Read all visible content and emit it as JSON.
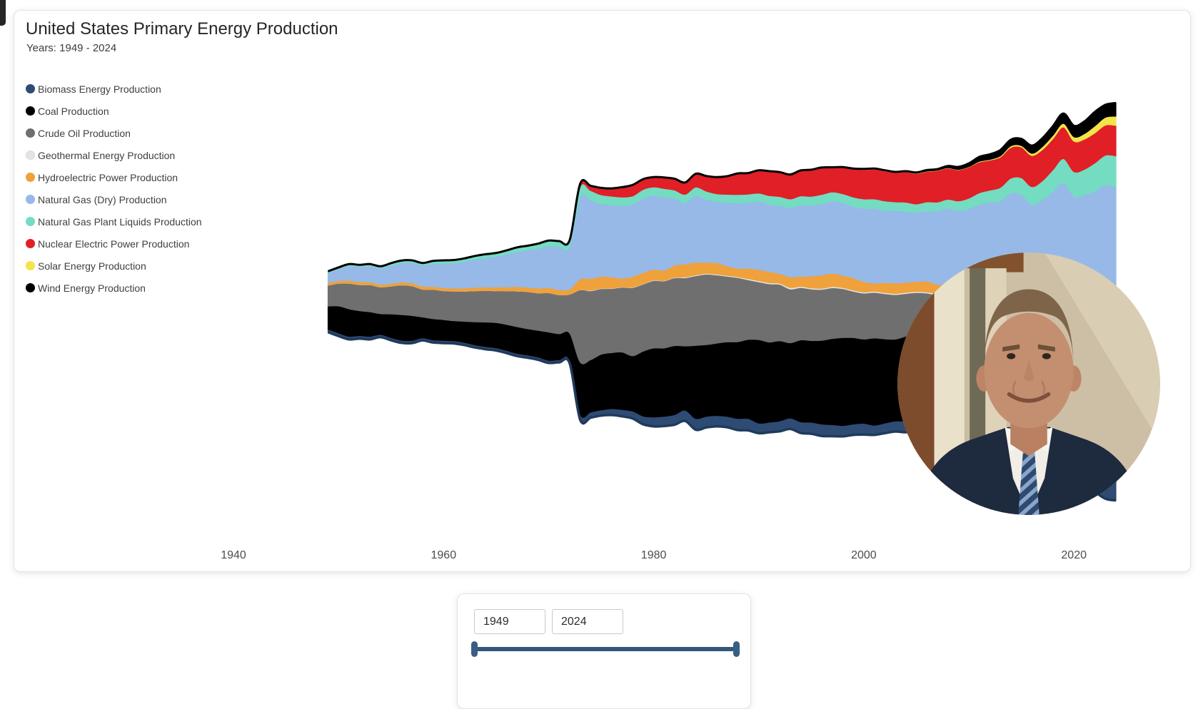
{
  "header": {
    "title": "United States Primary Energy Production",
    "subtitle": "Years: 1949 - 2024"
  },
  "legend": {
    "items": [
      {
        "label": "Biomass Energy Production",
        "color": "#2E4B73"
      },
      {
        "label": "Coal Production",
        "color": "#000000"
      },
      {
        "label": "Crude Oil Production",
        "color": "#6F6F6F"
      },
      {
        "label": "Geothermal Energy Production",
        "color": "#E4E4E4"
      },
      {
        "label": "Hydroelectric Power Production",
        "color": "#EFA13C"
      },
      {
        "label": "Natural Gas (Dry) Production",
        "color": "#96B9E7"
      },
      {
        "label": "Natural Gas Plant Liquids Production",
        "color": "#74DCC1"
      },
      {
        "label": "Nuclear Electric Power Production",
        "color": "#E01F26"
      },
      {
        "label": "Solar Energy Production",
        "color": "#F4E34A"
      },
      {
        "label": "Wind Energy Production",
        "color": "#000000"
      }
    ]
  },
  "chart_data": {
    "type": "area",
    "variant": "streamgraph-silhouette",
    "title": "United States Primary Energy Production",
    "xlabel": "",
    "ylabel": "",
    "grid": false,
    "legend_position": "top-left",
    "x_ticks": [
      1940,
      1960,
      1980,
      2000,
      2020
    ],
    "x_range": [
      1935,
      2030
    ],
    "top_outline_color": "#000000",
    "bottom_outline_color": "#1F3A5C",
    "x": [
      1949,
      1950,
      1951,
      1952,
      1953,
      1954,
      1955,
      1956,
      1957,
      1958,
      1959,
      1960,
      1961,
      1962,
      1963,
      1964,
      1965,
      1966,
      1967,
      1968,
      1969,
      1970,
      1971,
      1972,
      1973,
      1974,
      1975,
      1976,
      1977,
      1978,
      1979,
      1980,
      1981,
      1982,
      1983,
      1984,
      1985,
      1986,
      1987,
      1988,
      1989,
      1990,
      1991,
      1992,
      1993,
      1994,
      1995,
      1996,
      1997,
      1998,
      1999,
      2000,
      2001,
      2002,
      2003,
      2004,
      2005,
      2006,
      2007,
      2008,
      2009,
      2010,
      2011,
      2012,
      2013,
      2014,
      2015,
      2016,
      2017,
      2018,
      2019,
      2020,
      2021,
      2022,
      2023,
      2024
    ],
    "series": [
      {
        "name": "Biomass Energy Production",
        "color": "#2E4B73",
        "values": [
          0.8,
          0.8,
          0.8,
          0.8,
          0.8,
          0.7,
          0.7,
          0.7,
          0.7,
          0.7,
          0.7,
          0.7,
          0.7,
          0.7,
          0.7,
          0.7,
          0.7,
          0.7,
          0.7,
          0.7,
          0.7,
          0.7,
          0.7,
          0.8,
          1.5,
          1.5,
          1.5,
          1.7,
          1.8,
          2.0,
          2.2,
          2.5,
          2.6,
          2.7,
          2.9,
          3.0,
          3.0,
          2.9,
          2.9,
          3.1,
          3.2,
          2.7,
          2.7,
          2.8,
          2.9,
          3.0,
          3.1,
          3.2,
          3.1,
          2.9,
          2.9,
          3.0,
          2.6,
          2.7,
          2.8,
          3.0,
          3.1,
          3.2,
          3.4,
          3.8,
          3.9,
          4.3,
          4.4,
          4.5,
          4.6,
          4.8,
          4.7,
          4.7,
          4.9,
          5.0,
          4.9,
          4.5,
          4.8,
          5.0,
          5.0,
          5.1
        ]
      },
      {
        "name": "Coal Production",
        "color": "#000000",
        "values": [
          6.2,
          7.3,
          7.4,
          6.7,
          6.6,
          5.6,
          6.4,
          6.9,
          6.7,
          5.6,
          5.7,
          5.6,
          5.4,
          5.7,
          6.2,
          6.6,
          6.8,
          7.0,
          7.2,
          7.1,
          7.2,
          7.6,
          7.0,
          7.3,
          14.0,
          14.1,
          15.0,
          15.1,
          15.5,
          14.9,
          17.5,
          18.6,
          18.4,
          18.6,
          17.3,
          19.7,
          19.3,
          19.5,
          20.1,
          20.7,
          21.3,
          22.5,
          21.6,
          21.6,
          20.3,
          22.1,
          22.0,
          22.6,
          23.2,
          23.7,
          23.3,
          22.7,
          23.5,
          22.7,
          22.1,
          22.9,
          23.2,
          23.8,
          23.5,
          23.9,
          21.6,
          22.0,
          22.2,
          20.7,
          20.0,
          20.3,
          18.0,
          14.7,
          15.7,
          15.4,
          14.3,
          10.7,
          11.6,
          12.0,
          11.8,
          10.3
        ]
      },
      {
        "name": "Crude Oil Production",
        "color": "#6F6F6F",
        "values": [
          5.6,
          6.1,
          6.9,
          7.0,
          7.3,
          7.2,
          7.5,
          8.0,
          8.0,
          7.5,
          7.9,
          7.8,
          8.0,
          8.1,
          8.4,
          8.5,
          8.6,
          9.1,
          9.6,
          10.0,
          10.1,
          10.6,
          10.5,
          10.5,
          19.5,
          18.6,
          17.7,
          17.3,
          17.5,
          18.4,
          18.1,
          18.2,
          18.1,
          18.3,
          18.4,
          18.8,
          19.0,
          18.4,
          17.7,
          17.3,
          16.1,
          15.6,
          15.7,
          15.2,
          14.5,
          14.1,
          13.9,
          13.7,
          13.7,
          13.2,
          12.5,
          12.4,
          12.3,
          12.2,
          12.0,
          11.5,
          11.0,
          10.8,
          10.7,
          10.5,
          11.3,
          11.6,
          12.0,
          13.8,
          15.8,
          18.7,
          19.7,
          18.7,
          19.6,
          23.2,
          25.9,
          23.9,
          23.7,
          25.2,
          27.3,
          28.0
        ]
      },
      {
        "name": "Geothermal Energy Production",
        "color": "#E4E4E4",
        "values": [
          0,
          0,
          0,
          0,
          0,
          0,
          0,
          0,
          0,
          0,
          0,
          0,
          0,
          0,
          0,
          0,
          0,
          0,
          0,
          0,
          0,
          0,
          0,
          0,
          0,
          0.1,
          0.1,
          0.1,
          0.1,
          0.1,
          0.1,
          0.1,
          0.1,
          0.1,
          0.2,
          0.2,
          0.2,
          0.2,
          0.2,
          0.2,
          0.3,
          0.3,
          0.3,
          0.3,
          0.4,
          0.3,
          0.3,
          0.3,
          0.3,
          0.3,
          0.3,
          0.3,
          0.3,
          0.3,
          0.3,
          0.3,
          0.3,
          0.3,
          0.3,
          0.3,
          0.3,
          0.2,
          0.2,
          0.2,
          0.2,
          0.2,
          0.2,
          0.2,
          0.2,
          0.2,
          0.2,
          0.2,
          0.2,
          0.2,
          0.2,
          0.2
        ]
      },
      {
        "name": "Hydroelectric Power Production",
        "color": "#EFA13C",
        "values": [
          0.7,
          0.7,
          0.8,
          0.8,
          0.8,
          0.7,
          0.7,
          0.8,
          0.8,
          0.8,
          0.8,
          0.8,
          0.8,
          0.9,
          0.9,
          0.9,
          1.0,
          1.0,
          1.2,
          1.2,
          1.3,
          1.4,
          1.4,
          1.4,
          2.9,
          3.2,
          3.2,
          3.0,
          2.3,
          2.9,
          3.0,
          2.9,
          2.8,
          3.3,
          3.5,
          3.4,
          3.0,
          3.1,
          2.6,
          2.3,
          2.8,
          3.0,
          3.0,
          2.6,
          2.9,
          2.7,
          3.2,
          3.6,
          3.6,
          3.3,
          3.3,
          2.8,
          2.2,
          2.7,
          2.8,
          2.7,
          2.7,
          2.9,
          2.5,
          2.5,
          2.7,
          2.5,
          3.1,
          2.7,
          2.6,
          2.5,
          2.3,
          2.5,
          2.8,
          2.7,
          2.6,
          2.6,
          2.6,
          2.3,
          2.4,
          2.4
        ]
      },
      {
        "name": "Natural Gas (Dry) Production",
        "color": "#96B9E7",
        "values": [
          2.7,
          3.2,
          3.9,
          4.1,
          4.3,
          4.4,
          4.9,
          5.2,
          5.5,
          5.7,
          6.2,
          6.6,
          6.8,
          7.2,
          7.6,
          8.0,
          8.2,
          8.9,
          9.4,
          10.0,
          10.7,
          11.3,
          11.6,
          11.6,
          22.2,
          21.2,
          19.6,
          19.5,
          19.6,
          19.5,
          20.1,
          19.9,
          19.7,
          18.0,
          16.6,
          18.0,
          17.0,
          16.5,
          17.1,
          17.6,
          17.8,
          18.4,
          18.2,
          18.4,
          18.6,
          19.3,
          19.1,
          19.2,
          19.4,
          19.6,
          19.3,
          19.7,
          20.2,
          19.4,
          19.6,
          19.1,
          18.6,
          19.0,
          19.8,
          20.8,
          21.1,
          21.8,
          23.4,
          24.6,
          24.9,
          26.5,
          27.9,
          27.5,
          28.4,
          30.6,
          34.9,
          34.0,
          34.5,
          36.4,
          38.0,
          38.5
        ]
      },
      {
        "name": "Natural Gas Plant Liquids Production",
        "color": "#74DCC1",
        "values": [
          0.4,
          0.4,
          0.5,
          0.5,
          0.5,
          0.5,
          0.6,
          0.6,
          0.6,
          0.6,
          0.7,
          0.8,
          0.8,
          0.8,
          0.9,
          0.9,
          1.0,
          1.0,
          1.1,
          1.1,
          1.2,
          1.3,
          1.3,
          1.3,
          2.6,
          2.5,
          2.4,
          2.3,
          2.3,
          2.2,
          2.3,
          2.3,
          2.3,
          2.2,
          2.2,
          2.3,
          2.2,
          2.1,
          2.2,
          2.3,
          2.2,
          2.2,
          2.3,
          2.4,
          2.4,
          2.4,
          2.4,
          2.5,
          2.5,
          2.4,
          2.5,
          2.6,
          2.5,
          2.6,
          2.3,
          2.5,
          2.3,
          2.4,
          2.4,
          2.4,
          2.6,
          2.8,
          3.1,
          3.3,
          3.6,
          4.0,
          4.5,
          4.8,
          5.1,
          5.8,
          6.5,
          6.6,
          6.9,
          7.5,
          7.9,
          8.4
        ]
      },
      {
        "name": "Nuclear Electric Power Production",
        "color": "#E01F26",
        "values": [
          0,
          0,
          0,
          0,
          0,
          0,
          0,
          0,
          0,
          0,
          0,
          0,
          0,
          0,
          0,
          0,
          0,
          0,
          0.1,
          0.1,
          0.1,
          0.1,
          0.2,
          0.3,
          0.9,
          1.3,
          1.9,
          2.1,
          2.7,
          3.0,
          2.8,
          2.7,
          3.0,
          3.1,
          3.2,
          3.6,
          4.1,
          4.5,
          4.9,
          5.7,
          5.6,
          6.1,
          6.5,
          6.5,
          6.5,
          6.8,
          7.1,
          7.2,
          6.6,
          7.1,
          7.6,
          7.9,
          8.0,
          8.1,
          7.9,
          8.2,
          8.2,
          8.2,
          8.5,
          8.4,
          8.4,
          8.4,
          8.3,
          8.1,
          8.2,
          8.3,
          8.3,
          8.4,
          8.4,
          8.4,
          8.5,
          8.2,
          8.1,
          8.1,
          8.1,
          8.2
        ]
      },
      {
        "name": "Solar Energy Production",
        "color": "#F4E34A",
        "values": [
          0,
          0,
          0,
          0,
          0,
          0,
          0,
          0,
          0,
          0,
          0,
          0,
          0,
          0,
          0,
          0,
          0,
          0,
          0,
          0,
          0,
          0,
          0,
          0,
          0,
          0,
          0,
          0,
          0,
          0,
          0,
          0,
          0,
          0,
          0,
          0,
          0,
          0,
          0,
          0,
          0.1,
          0.1,
          0.1,
          0.1,
          0.1,
          0.1,
          0.1,
          0.1,
          0.1,
          0.1,
          0.1,
          0.1,
          0.1,
          0.1,
          0.1,
          0.1,
          0.1,
          0.1,
          0.1,
          0.1,
          0.1,
          0.1,
          0.2,
          0.2,
          0.3,
          0.4,
          0.4,
          0.6,
          0.8,
          0.9,
          1.0,
          1.2,
          1.5,
          1.9,
          2.1,
          2.5
        ]
      },
      {
        "name": "Wind Energy Production",
        "color": "#000000",
        "values": [
          0,
          0,
          0,
          0,
          0,
          0,
          0,
          0,
          0,
          0,
          0,
          0,
          0,
          0,
          0,
          0,
          0,
          0,
          0,
          0,
          0,
          0,
          0,
          0,
          0,
          0,
          0,
          0,
          0,
          0,
          0,
          0,
          0,
          0,
          0,
          0,
          0,
          0,
          0,
          0,
          0,
          0,
          0,
          0,
          0,
          0,
          0,
          0,
          0,
          0,
          0,
          0.1,
          0.1,
          0.1,
          0.1,
          0.1,
          0.2,
          0.3,
          0.3,
          0.5,
          0.7,
          0.9,
          1.2,
          1.4,
          1.6,
          1.7,
          1.8,
          2.1,
          2.3,
          2.5,
          2.7,
          3.0,
          3.3,
          3.8,
          3.4,
          3.6
        ]
      }
    ]
  },
  "range_panel": {
    "start_value": "1949",
    "end_value": "2024",
    "slider_color": "#35587c",
    "handle_color": "#3a5e82"
  }
}
